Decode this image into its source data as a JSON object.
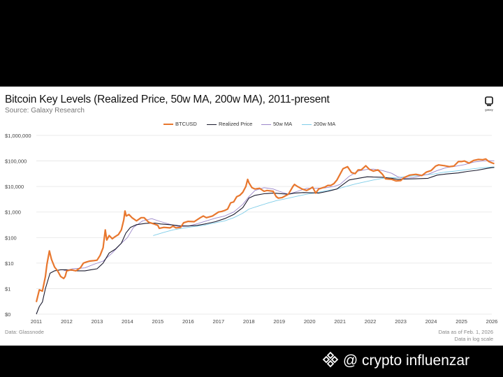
{
  "header": {
    "title": "Bitcoin Key Levels (Realized Price, 50w MA, 200w MA), 2011-present",
    "source": "Source: Galaxy Research",
    "logo_text": "galaxy"
  },
  "footer": {
    "data_source": "Data: Glassnode",
    "data_as_of": "Data as of Feb. 1, 2026",
    "scale_note": "Data in log scale"
  },
  "watermark": {
    "text": "@ crypto influenzar",
    "icon": "binance-diamond-icon"
  },
  "colors": {
    "btc": "#E8772E",
    "realized": "#1a1a2e",
    "ma50": "#9b86c9",
    "ma200": "#7fcde8"
  },
  "chart_data": {
    "type": "line",
    "title": "Bitcoin Key Levels (Realized Price, 50w MA, 200w MA), 2011-present",
    "yscale": "log",
    "ylim": [
      0.1,
      1000000
    ],
    "xlim": [
      2011,
      2026
    ],
    "y_ticks": [
      {
        "value": 1000000,
        "label": "$1,000,000"
      },
      {
        "value": 100000,
        "label": "$100,000"
      },
      {
        "value": 10000,
        "label": "$10,000"
      },
      {
        "value": 1000,
        "label": "$1,000"
      },
      {
        "value": 100,
        "label": "$100"
      },
      {
        "value": 10,
        "label": "$10"
      },
      {
        "value": 1,
        "label": "$1"
      },
      {
        "value": 0.1,
        "label": "$0"
      }
    ],
    "x_ticks": [
      "2011",
      "2012",
      "2013",
      "2014",
      "2015",
      "2016",
      "2017",
      "2018",
      "2019",
      "2020",
      "2021",
      "2022",
      "2023",
      "2024",
      "2025",
      "2026"
    ],
    "legend_position": "top-center",
    "series": [
      {
        "name": "BTCUSD",
        "color": "#E8772E",
        "points": [
          [
            2011.0,
            0.3
          ],
          [
            2011.1,
            0.9
          ],
          [
            2011.2,
            0.8
          ],
          [
            2011.3,
            3
          ],
          [
            2011.35,
            9
          ],
          [
            2011.43,
            30
          ],
          [
            2011.5,
            14
          ],
          [
            2011.6,
            7
          ],
          [
            2011.7,
            5
          ],
          [
            2011.8,
            3
          ],
          [
            2011.9,
            2.5
          ],
          [
            2011.95,
            3
          ],
          [
            2012.0,
            5
          ],
          [
            2012.15,
            5.5
          ],
          [
            2012.3,
            5
          ],
          [
            2012.45,
            6.5
          ],
          [
            2012.55,
            10
          ],
          [
            2012.65,
            11
          ],
          [
            2012.75,
            12
          ],
          [
            2012.9,
            12.5
          ],
          [
            2013.0,
            13
          ],
          [
            2013.1,
            20
          ],
          [
            2013.2,
            40
          ],
          [
            2013.27,
            200
          ],
          [
            2013.32,
            80
          ],
          [
            2013.4,
            120
          ],
          [
            2013.5,
            90
          ],
          [
            2013.6,
            110
          ],
          [
            2013.7,
            130
          ],
          [
            2013.8,
            200
          ],
          [
            2013.88,
            500
          ],
          [
            2013.92,
            1100
          ],
          [
            2013.96,
            700
          ],
          [
            2014.05,
            800
          ],
          [
            2014.15,
            600
          ],
          [
            2014.3,
            450
          ],
          [
            2014.45,
            600
          ],
          [
            2014.55,
            600
          ],
          [
            2014.7,
            400
          ],
          [
            2014.85,
            350
          ],
          [
            2015.0,
            300
          ],
          [
            2015.05,
            230
          ],
          [
            2015.2,
            250
          ],
          [
            2015.4,
            240
          ],
          [
            2015.5,
            280
          ],
          [
            2015.6,
            240
          ],
          [
            2015.75,
            250
          ],
          [
            2015.85,
            380
          ],
          [
            2016.0,
            430
          ],
          [
            2016.2,
            420
          ],
          [
            2016.4,
            600
          ],
          [
            2016.5,
            700
          ],
          [
            2016.6,
            600
          ],
          [
            2016.8,
            700
          ],
          [
            2017.0,
            1000
          ],
          [
            2017.1,
            1050
          ],
          [
            2017.2,
            1150
          ],
          [
            2017.3,
            1300
          ],
          [
            2017.4,
            2300
          ],
          [
            2017.5,
            2500
          ],
          [
            2017.6,
            4000
          ],
          [
            2017.7,
            4500
          ],
          [
            2017.8,
            6000
          ],
          [
            2017.9,
            10000
          ],
          [
            2017.96,
            19000
          ],
          [
            2018.0,
            14000
          ],
          [
            2018.1,
            9000
          ],
          [
            2018.2,
            8000
          ],
          [
            2018.35,
            8500
          ],
          [
            2018.5,
            6500
          ],
          [
            2018.6,
            7000
          ],
          [
            2018.8,
            6500
          ],
          [
            2018.9,
            4000
          ],
          [
            2018.97,
            3500
          ],
          [
            2019.1,
            3700
          ],
          [
            2019.3,
            5000
          ],
          [
            2019.45,
            10000
          ],
          [
            2019.5,
            12000
          ],
          [
            2019.6,
            10000
          ],
          [
            2019.75,
            8000
          ],
          [
            2019.9,
            7000
          ],
          [
            2020.0,
            8000
          ],
          [
            2020.1,
            9500
          ],
          [
            2020.2,
            5500
          ],
          [
            2020.3,
            8000
          ],
          [
            2020.5,
            9500
          ],
          [
            2020.6,
            11000
          ],
          [
            2020.7,
            11000
          ],
          [
            2020.8,
            13000
          ],
          [
            2020.9,
            18000
          ],
          [
            2021.0,
            30000
          ],
          [
            2021.1,
            50000
          ],
          [
            2021.25,
            60000
          ],
          [
            2021.38,
            35000
          ],
          [
            2021.5,
            32000
          ],
          [
            2021.6,
            45000
          ],
          [
            2021.7,
            45000
          ],
          [
            2021.85,
            65000
          ],
          [
            2021.97,
            47000
          ],
          [
            2022.1,
            40000
          ],
          [
            2022.25,
            45000
          ],
          [
            2022.4,
            30000
          ],
          [
            2022.5,
            20000
          ],
          [
            2022.7,
            19000
          ],
          [
            2022.85,
            16500
          ],
          [
            2023.0,
            17000
          ],
          [
            2023.1,
            22000
          ],
          [
            2023.3,
            28000
          ],
          [
            2023.5,
            30000
          ],
          [
            2023.7,
            27000
          ],
          [
            2023.85,
            37000
          ],
          [
            2024.0,
            42000
          ],
          [
            2024.15,
            63000
          ],
          [
            2024.25,
            70000
          ],
          [
            2024.45,
            65000
          ],
          [
            2024.6,
            60000
          ],
          [
            2024.75,
            63000
          ],
          [
            2024.9,
            95000
          ],
          [
            2025.0,
            95000
          ],
          [
            2025.1,
            100000
          ],
          [
            2025.25,
            82000
          ],
          [
            2025.4,
            105000
          ],
          [
            2025.55,
            115000
          ],
          [
            2025.7,
            112000
          ],
          [
            2025.8,
            120000
          ],
          [
            2025.9,
            95000
          ],
          [
            2026.0,
            85000
          ],
          [
            2026.08,
            78000
          ]
        ]
      },
      {
        "name": "Realized Price",
        "color": "#1a1a2e",
        "points": [
          [
            2011.0,
            0.1
          ],
          [
            2011.1,
            0.2
          ],
          [
            2011.2,
            0.3
          ],
          [
            2011.3,
            1
          ],
          [
            2011.45,
            4
          ],
          [
            2011.6,
            5
          ],
          [
            2011.8,
            5.5
          ],
          [
            2012.0,
            5.5
          ],
          [
            2012.3,
            5
          ],
          [
            2012.6,
            5
          ],
          [
            2012.8,
            5.5
          ],
          [
            2013.0,
            6
          ],
          [
            2013.2,
            10
          ],
          [
            2013.4,
            25
          ],
          [
            2013.6,
            35
          ],
          [
            2013.8,
            60
          ],
          [
            2013.95,
            150
          ],
          [
            2014.1,
            250
          ],
          [
            2014.3,
            320
          ],
          [
            2014.6,
            360
          ],
          [
            2014.9,
            370
          ],
          [
            2015.1,
            340
          ],
          [
            2015.4,
            320
          ],
          [
            2015.7,
            290
          ],
          [
            2016.0,
            285
          ],
          [
            2016.3,
            300
          ],
          [
            2016.6,
            350
          ],
          [
            2016.9,
            420
          ],
          [
            2017.2,
            550
          ],
          [
            2017.5,
            800
          ],
          [
            2017.8,
            1500
          ],
          [
            2018.0,
            3500
          ],
          [
            2018.2,
            4500
          ],
          [
            2018.5,
            5200
          ],
          [
            2018.8,
            5500
          ],
          [
            2019.0,
            5300
          ],
          [
            2019.3,
            5000
          ],
          [
            2019.5,
            5500
          ],
          [
            2019.8,
            5800
          ],
          [
            2020.0,
            5700
          ],
          [
            2020.3,
            5500
          ],
          [
            2020.6,
            6500
          ],
          [
            2020.9,
            8000
          ],
          [
            2021.1,
            12000
          ],
          [
            2021.3,
            18000
          ],
          [
            2021.6,
            21000
          ],
          [
            2021.9,
            24000
          ],
          [
            2022.1,
            23500
          ],
          [
            2022.4,
            23000
          ],
          [
            2022.7,
            21000
          ],
          [
            2022.9,
            19000
          ],
          [
            2023.1,
            19500
          ],
          [
            2023.5,
            20000
          ],
          [
            2023.9,
            21000
          ],
          [
            2024.2,
            28000
          ],
          [
            2024.5,
            31000
          ],
          [
            2024.9,
            34000
          ],
          [
            2025.2,
            39000
          ],
          [
            2025.5,
            43000
          ],
          [
            2025.8,
            50000
          ],
          [
            2026.0,
            55000
          ],
          [
            2026.08,
            56000
          ]
        ]
      },
      {
        "name": "50w MA",
        "color": "#9b86c9",
        "points": [
          [
            2011.9,
            5
          ],
          [
            2012.2,
            6
          ],
          [
            2012.6,
            6.5
          ],
          [
            2012.9,
            9
          ],
          [
            2013.2,
            12
          ],
          [
            2013.5,
            25
          ],
          [
            2013.8,
            60
          ],
          [
            2014.0,
            100
          ],
          [
            2014.2,
            250
          ],
          [
            2014.5,
            450
          ],
          [
            2014.8,
            550
          ],
          [
            2015.1,
            420
          ],
          [
            2015.4,
            330
          ],
          [
            2015.7,
            270
          ],
          [
            2016.0,
            280
          ],
          [
            2016.3,
            350
          ],
          [
            2016.6,
            450
          ],
          [
            2016.9,
            580
          ],
          [
            2017.2,
            700
          ],
          [
            2017.5,
            1000
          ],
          [
            2017.8,
            2000
          ],
          [
            2018.0,
            4000
          ],
          [
            2018.2,
            7000
          ],
          [
            2018.5,
            9000
          ],
          [
            2018.8,
            8000
          ],
          [
            2019.0,
            6500
          ],
          [
            2019.3,
            5000
          ],
          [
            2019.6,
            6500
          ],
          [
            2019.9,
            8500
          ],
          [
            2020.2,
            8500
          ],
          [
            2020.5,
            8800
          ],
          [
            2020.8,
            10000
          ],
          [
            2021.0,
            12000
          ],
          [
            2021.3,
            25000
          ],
          [
            2021.6,
            40000
          ],
          [
            2021.9,
            47000
          ],
          [
            2022.1,
            48000
          ],
          [
            2022.4,
            42000
          ],
          [
            2022.7,
            33000
          ],
          [
            2022.9,
            24000
          ],
          [
            2023.1,
            21000
          ],
          [
            2023.4,
            22000
          ],
          [
            2023.7,
            27000
          ],
          [
            2023.9,
            30000
          ],
          [
            2024.2,
            42000
          ],
          [
            2024.5,
            55000
          ],
          [
            2024.8,
            62000
          ],
          [
            2025.1,
            72000
          ],
          [
            2025.4,
            90000
          ],
          [
            2025.7,
            100000
          ],
          [
            2025.9,
            103000
          ],
          [
            2026.08,
            101000
          ]
        ]
      },
      {
        "name": "200w MA",
        "color": "#7fcde8",
        "points": [
          [
            2014.85,
            120
          ],
          [
            2015.2,
            160
          ],
          [
            2015.5,
            200
          ],
          [
            2015.8,
            230
          ],
          [
            2016.1,
            260
          ],
          [
            2016.5,
            300
          ],
          [
            2016.9,
            380
          ],
          [
            2017.2,
            450
          ],
          [
            2017.5,
            600
          ],
          [
            2017.8,
            900
          ],
          [
            2018.0,
            1300
          ],
          [
            2018.3,
            1700
          ],
          [
            2018.6,
            2200
          ],
          [
            2018.9,
            2800
          ],
          [
            2019.2,
            3300
          ],
          [
            2019.6,
            4200
          ],
          [
            2019.9,
            5000
          ],
          [
            2020.2,
            5700
          ],
          [
            2020.6,
            7000
          ],
          [
            2020.9,
            8000
          ],
          [
            2021.2,
            10000
          ],
          [
            2021.5,
            12500
          ],
          [
            2021.8,
            15000
          ],
          [
            2022.1,
            18000
          ],
          [
            2022.4,
            21000
          ],
          [
            2022.7,
            22000
          ],
          [
            2022.9,
            22500
          ],
          [
            2023.2,
            24500
          ],
          [
            2023.5,
            26500
          ],
          [
            2023.8,
            28500
          ],
          [
            2024.1,
            31000
          ],
          [
            2024.4,
            36000
          ],
          [
            2024.7,
            39000
          ],
          [
            2025.0,
            43000
          ],
          [
            2025.3,
            48000
          ],
          [
            2025.6,
            53000
          ],
          [
            2025.9,
            57000
          ],
          [
            2026.08,
            58500
          ]
        ]
      }
    ]
  }
}
